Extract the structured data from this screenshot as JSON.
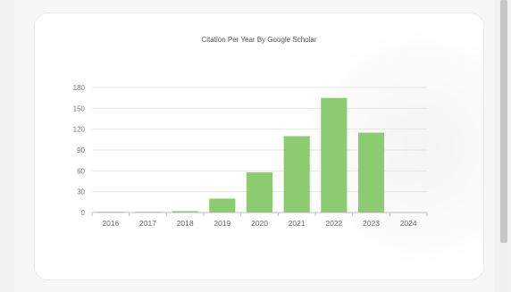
{
  "chart_data": {
    "type": "bar",
    "title": "Citation Per Year By Google Scholar",
    "categories": [
      "2016",
      "2017",
      "2018",
      "2019",
      "2020",
      "2021",
      "2022",
      "2023",
      "2024"
    ],
    "values": [
      1,
      1,
      2,
      20,
      58,
      110,
      165,
      115,
      0
    ],
    "ylim": [
      0,
      180
    ],
    "yticks": [
      0,
      30,
      60,
      90,
      120,
      150,
      180
    ],
    "grid": true,
    "bar_color": "#8ccb70"
  }
}
